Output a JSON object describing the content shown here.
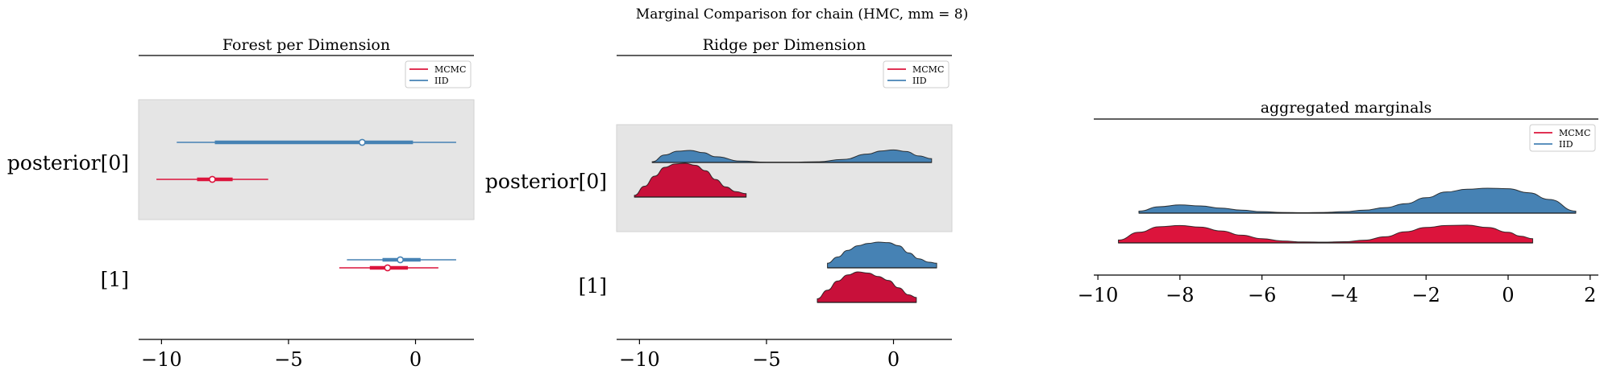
{
  "suptitle": "Marginal Comparison for chain (HMC, mm = 8)",
  "colors": {
    "MCMC": "#dc143c",
    "IID": "#4682b4",
    "ridge_MCMC_dark": "#c8103a",
    "shade": "#e5e5e5"
  },
  "chart_data": [
    {
      "type": "forest",
      "title": "Forest per Dimension",
      "legend": {
        "placement": "top-right",
        "entries": [
          "MCMC",
          "IID"
        ]
      },
      "xlim": [
        -10.9,
        2.3
      ],
      "xticks": [
        -10,
        -5,
        0
      ],
      "xtick_labels": [
        "−10",
        "−5",
        "0"
      ],
      "ytick_labels": [
        "posterior[0]",
        "[1]"
      ],
      "rows": [
        {
          "label": "posterior[0]",
          "shaded": true,
          "series": [
            {
              "name": "IID",
              "hdi_94": [
                -9.4,
                1.6
              ],
              "iqr": [
                -7.9,
                -0.1
              ],
              "median": -2.1
            },
            {
              "name": "MCMC",
              "hdi_94": [
                -10.2,
                -5.8
              ],
              "iqr": [
                -8.6,
                -7.2
              ],
              "median": -8.0
            }
          ]
        },
        {
          "label": "[1]",
          "shaded": false,
          "series": [
            {
              "name": "IID",
              "hdi_94": [
                -2.7,
                1.6
              ],
              "iqr": [
                -1.3,
                0.2
              ],
              "median": -0.6
            },
            {
              "name": "MCMC",
              "hdi_94": [
                -3.0,
                0.9
              ],
              "iqr": [
                -1.8,
                -0.3
              ],
              "median": -1.1
            }
          ]
        }
      ]
    },
    {
      "type": "ridge",
      "title": "Ridge per Dimension",
      "legend": {
        "placement": "top-right",
        "entries": [
          "MCMC",
          "IID"
        ]
      },
      "xlim": [
        -10.9,
        2.3
      ],
      "xticks": [
        -10,
        -5,
        0
      ],
      "xtick_labels": [
        "−10",
        "−5",
        "0"
      ],
      "ytick_labels": [
        "posterior[0]",
        "[1]"
      ],
      "rows": [
        {
          "label": "posterior[0]",
          "shaded": true,
          "series": [
            {
              "name": "IID",
              "x": [
                -9.5,
                -9.0,
                -8.5,
                -8.0,
                -7.5,
                -7.0,
                -6.0,
                -5.0,
                -4.0,
                -3.0,
                -2.0,
                -1.0,
                -0.5,
                0.0,
                0.5,
                1.0,
                1.5
              ],
              "density": [
                0.05,
                0.55,
                0.82,
                0.88,
                0.72,
                0.42,
                0.1,
                0.02,
                0.02,
                0.05,
                0.22,
                0.62,
                0.84,
                0.92,
                0.8,
                0.48,
                0.28
              ]
            },
            {
              "name": "MCMC",
              "x": [
                -10.2,
                -9.8,
                -9.4,
                -9.0,
                -8.6,
                -8.2,
                -7.8,
                -7.4,
                -7.0,
                -6.6,
                -6.2,
                -5.8
              ],
              "density": [
                0.05,
                0.32,
                0.62,
                0.88,
                0.98,
                1.0,
                0.94,
                0.78,
                0.52,
                0.3,
                0.16,
                0.1
              ]
            }
          ]
        },
        {
          "label": "[1]",
          "shaded": false,
          "series": [
            {
              "name": "IID",
              "x": [
                -2.6,
                -2.2,
                -1.8,
                -1.4,
                -1.0,
                -0.6,
                -0.2,
                0.2,
                0.6,
                1.0,
                1.4,
                1.7
              ],
              "density": [
                0.18,
                0.42,
                0.68,
                0.86,
                0.95,
                1.0,
                0.98,
                0.86,
                0.58,
                0.35,
                0.22,
                0.18
              ]
            },
            {
              "name": "MCMC",
              "x": [
                -3.0,
                -2.6,
                -2.2,
                -1.8,
                -1.4,
                -1.0,
                -0.6,
                -0.2,
                0.2,
                0.6,
                0.9
              ],
              "density": [
                0.12,
                0.4,
                0.7,
                0.9,
                1.0,
                0.96,
                0.85,
                0.72,
                0.48,
                0.25,
                0.16
              ]
            }
          ]
        }
      ]
    },
    {
      "type": "ridge",
      "title": "aggregated marginals",
      "legend": {
        "placement": "top-right",
        "entries": [
          "MCMC",
          "IID"
        ]
      },
      "xlim": [
        -10.1,
        2.2
      ],
      "xticks": [
        -10,
        -8,
        -6,
        -4,
        -2,
        0,
        2
      ],
      "xtick_labels": [
        "−10",
        "−8",
        "−6",
        "−4",
        "−2",
        "0",
        "2"
      ],
      "series": [
        {
          "name": "IID",
          "x": [
            -9.0,
            -8.5,
            -8.0,
            -7.5,
            -7.0,
            -6.5,
            -6.0,
            -5.5,
            -5.0,
            -4.5,
            -4.0,
            -3.5,
            -3.0,
            -2.5,
            -2.0,
            -1.5,
            -1.0,
            -0.5,
            0.0,
            0.5,
            1.0,
            1.65
          ],
          "density": [
            0.08,
            0.26,
            0.33,
            0.29,
            0.2,
            0.12,
            0.06,
            0.03,
            0.02,
            0.03,
            0.06,
            0.12,
            0.22,
            0.38,
            0.62,
            0.85,
            0.96,
            1.0,
            0.98,
            0.82,
            0.55,
            0.08
          ]
        },
        {
          "name": "MCMC",
          "x": [
            -9.5,
            -9.0,
            -8.5,
            -8.0,
            -7.5,
            -7.0,
            -6.5,
            -6.0,
            -5.5,
            -5.0,
            -4.5,
            -4.0,
            -3.5,
            -3.0,
            -2.5,
            -2.0,
            -1.5,
            -1.0,
            -0.5,
            0.0,
            0.3,
            0.6
          ],
          "density": [
            0.15,
            0.55,
            0.84,
            0.9,
            0.82,
            0.62,
            0.4,
            0.22,
            0.1,
            0.05,
            0.04,
            0.06,
            0.14,
            0.32,
            0.58,
            0.8,
            0.9,
            0.92,
            0.8,
            0.55,
            0.35,
            0.22
          ]
        }
      ]
    }
  ]
}
